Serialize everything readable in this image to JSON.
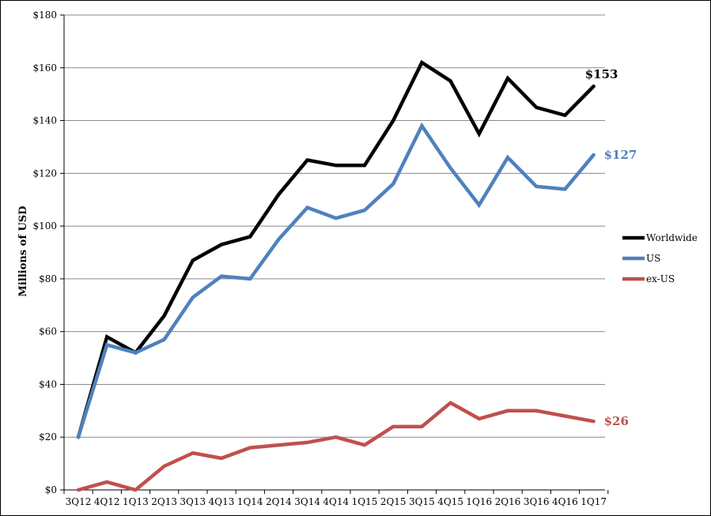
{
  "chart_data": {
    "type": "line",
    "title": "",
    "xlabel": "",
    "ylabel": "Millions of USD",
    "ylim": [
      0,
      180
    ],
    "grid": true,
    "legend_position": "right",
    "categories": [
      "3Q12",
      "4Q12",
      "1Q13",
      "2Q13",
      "3Q13",
      "4Q13",
      "1Q14",
      "2Q14",
      "3Q14",
      "4Q14",
      "1Q15",
      "2Q15",
      "3Q15",
      "4Q15",
      "1Q16",
      "2Q16",
      "3Q16",
      "4Q16",
      "1Q17"
    ],
    "y_ticks": [
      "$0",
      "$20",
      "$40",
      "$60",
      "$80",
      "$100",
      "$120",
      "$140",
      "$160",
      "$180"
    ],
    "y_tick_values": [
      0,
      20,
      40,
      60,
      80,
      100,
      120,
      140,
      160,
      180
    ],
    "series": [
      {
        "name": "Worldwide",
        "color": "#000000",
        "end_label": "$153",
        "values": [
          20,
          58,
          52,
          66,
          87,
          93,
          96,
          112,
          125,
          123,
          123,
          140,
          162,
          155,
          135,
          156,
          145,
          142,
          153
        ]
      },
      {
        "name": "US",
        "color": "#4f81bd",
        "end_label": "$127",
        "values": [
          20,
          55,
          52,
          57,
          73,
          81,
          80,
          95,
          107,
          103,
          106,
          116,
          138,
          122,
          108,
          126,
          115,
          114,
          127
        ]
      },
      {
        "name": "ex-US",
        "color": "#c0504d",
        "end_label": "$26",
        "values": [
          0,
          3,
          0,
          9,
          14,
          12,
          16,
          17,
          18,
          20,
          17,
          24,
          24,
          33,
          27,
          30,
          30,
          28,
          26
        ]
      }
    ]
  }
}
